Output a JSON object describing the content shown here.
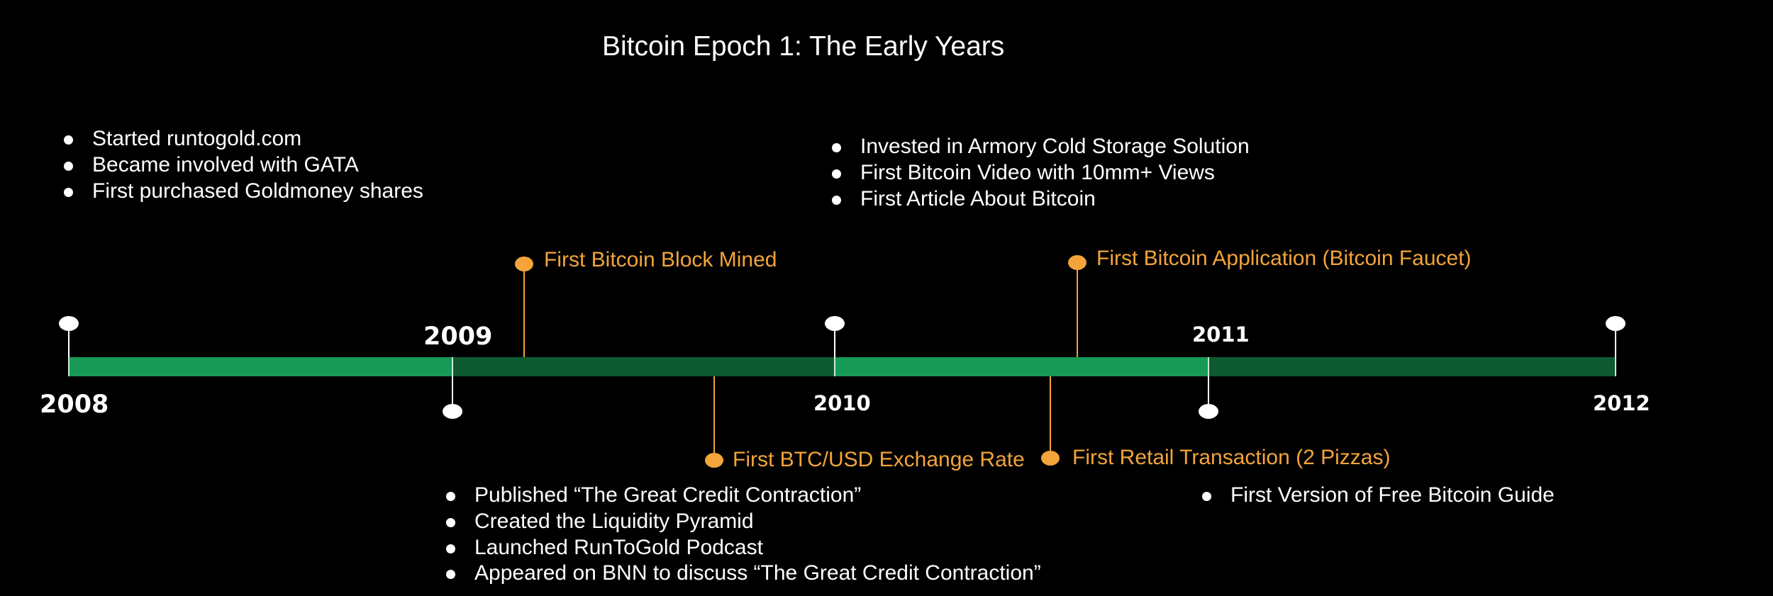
{
  "title": "Bitcoin Epoch 1: The Early Years",
  "years": [
    "2008",
    "2009",
    "2010",
    "2011",
    "2012"
  ],
  "events": [
    "First Bitcoin Block Mined",
    "First BTC/USD Exchange Rate",
    "First Bitcoin Application (Bitcoin Faucet)",
    "First Retail Transaction (2 Pizzas)"
  ],
  "notes_2008": [
    "Started runtogold.com",
    "Became involved with GATA",
    "First purchased Goldmoney shares"
  ],
  "notes_2009": [
    "Published “The Great Credit Contraction”",
    "Created the Liquidity Pyramid",
    "Launched RunToGold Podcast",
    "Appeared on BNN to discuss “The Great Credit Contraction”"
  ],
  "notes_2010": [
    "Invested in Armory Cold Storage Solution",
    "First Bitcoin Video with 10mm+ Views",
    "First Article About Bitcoin"
  ],
  "notes_2011": [
    "First Version of Free Bitcoin Guide"
  ],
  "colors": {
    "background": "#000000",
    "segment_light": "#169a56",
    "segment_dark": "#0e5a31",
    "event": "#f3a43a",
    "text": "#ffffff"
  }
}
